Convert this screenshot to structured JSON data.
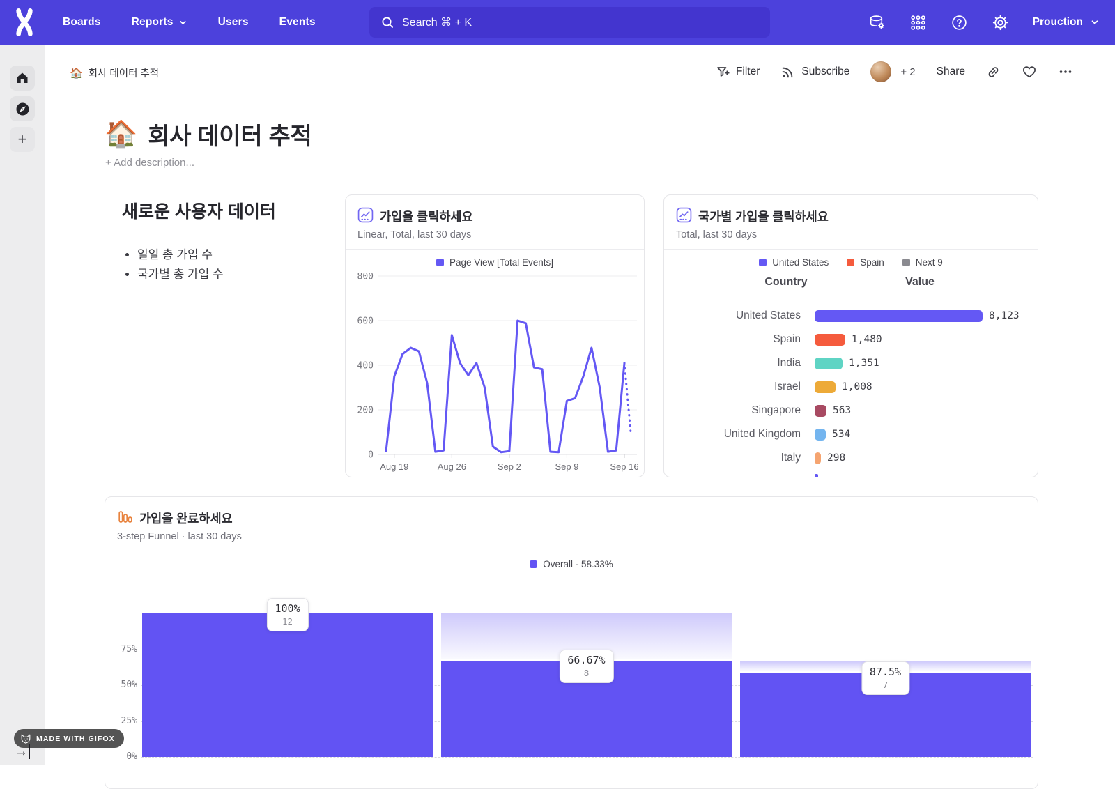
{
  "nav": {
    "items": [
      "Boards",
      "Reports",
      "Users",
      "Events"
    ],
    "search_placeholder": "Search  ⌘ + K",
    "project": "Prouction"
  },
  "toolbar": {
    "breadcrumb_emoji": "🏠",
    "breadcrumb": "회사 데이터 추적",
    "filter_label": "Filter",
    "subscribe_label": "Subscribe",
    "collaborators_extra": "+ 2",
    "share_label": "Share"
  },
  "page": {
    "emoji": "🏠",
    "title": "회사 데이터 추적",
    "add_description": "+ Add description..."
  },
  "text_tile": {
    "heading": "새로운 사용자 데이터",
    "bullets": [
      "일일 총 가입 수",
      "국가별 총 가입 수"
    ]
  },
  "chart_data": [
    {
      "type": "line",
      "title": "가입을 클릭하세요",
      "subtitle": "Linear, Total, last 30 days",
      "legend": "Page View [Total Events]",
      "color": "#6458f4",
      "ylim": [
        0,
        800
      ],
      "yticks": [
        0,
        200,
        400,
        600,
        800
      ],
      "x_ticks": [
        {
          "label": "Aug 19",
          "i": 1
        },
        {
          "label": "Aug 26",
          "i": 8
        },
        {
          "label": "Sep 2",
          "i": 15
        },
        {
          "label": "Sep 9",
          "i": 22
        },
        {
          "label": "Sep 16",
          "i": 29
        }
      ],
      "values": [
        15,
        350,
        450,
        478,
        462,
        320,
        12,
        18,
        535,
        410,
        355,
        410,
        300,
        35,
        10,
        15,
        600,
        588,
        390,
        382,
        12,
        10,
        240,
        252,
        350,
        478,
        300,
        12,
        18,
        410
      ],
      "incomplete_tail_value": 100
    },
    {
      "type": "bar",
      "title": "국가별 가입을 클릭하세요",
      "subtitle": "Total, last 30 days",
      "legend": [
        {
          "label": "United States",
          "color": "#6458f4"
        },
        {
          "label": "Spain",
          "color": "#f55b3d"
        },
        {
          "label": "Next 9",
          "color": "#8a8a90"
        }
      ],
      "columns": [
        "Country",
        "Value"
      ],
      "rows": [
        {
          "label": "United States",
          "value": "8,123",
          "num": 8123,
          "color": "#6458f4"
        },
        {
          "label": "Spain",
          "value": "1,480",
          "num": 1480,
          "color": "#f55b3d"
        },
        {
          "label": "India",
          "value": "1,351",
          "num": 1351,
          "color": "#5fd4c4"
        },
        {
          "label": "Israel",
          "value": "1,008",
          "num": 1008,
          "color": "#edaa38"
        },
        {
          "label": "Singapore",
          "value": "563",
          "num": 563,
          "color": "#a84a62"
        },
        {
          "label": "United Kingdom",
          "value": "534",
          "num": 534,
          "color": "#74b5ef"
        },
        {
          "label": "Italy",
          "value": "298",
          "num": 298,
          "color": "#f5a470"
        }
      ]
    },
    {
      "type": "funnel",
      "title": "가입을 완료하세요",
      "subtitle": "3-step Funnel · last 30 days",
      "legend": "Overall · 58.33%",
      "color": "#6253f3",
      "yticks": [
        "75%",
        "50%",
        "25%",
        "0%"
      ],
      "steps": [
        {
          "conversion": "100%",
          "count": "12",
          "overall_pct": 100
        },
        {
          "conversion": "66.67%",
          "count": "8",
          "overall_pct": 66.67
        },
        {
          "conversion": "87.5%",
          "count": "7",
          "overall_pct": 58.33
        }
      ]
    }
  ],
  "gifox": {
    "label": "MADE WITH GIFOX"
  }
}
